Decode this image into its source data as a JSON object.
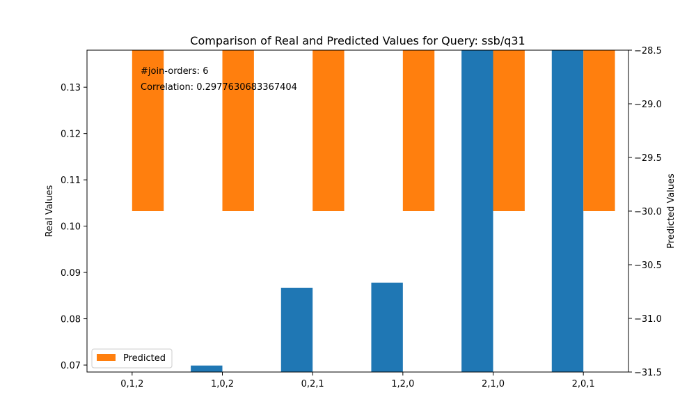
{
  "chart_data": {
    "type": "bar",
    "title": "Comparison of Real and Predicted Values for Query: ssb/q31",
    "categories": [
      "0,1,2",
      "1,0,2",
      "0,2,1",
      "1,2,0",
      "2,1,0",
      "2,0,1"
    ],
    "ylabel_left": "Real Values",
    "ylabel_right": "Predicted Values",
    "ylim_left": [
      0.0685,
      0.138
    ],
    "ylim_right": [
      -31.5,
      -28.5
    ],
    "yticks_left": [
      0.07,
      0.08,
      0.09,
      0.1,
      0.11,
      0.12,
      0.13
    ],
    "yticks_right": [
      -31.5,
      -31.0,
      -30.5,
      -30.0,
      -29.5,
      -29.0,
      -28.5
    ],
    "ytick_labels_left": [
      "0.07",
      "0.08",
      "0.09",
      "0.10",
      "0.11",
      "0.12",
      "0.13"
    ],
    "ytick_labels_right": [
      "−31.5",
      "−31.0",
      "−30.5",
      "−30.0",
      "−29.5",
      "−29.0",
      "−28.5"
    ],
    "series": [
      {
        "key": "real",
        "axis": "left",
        "color": "#1f77b4",
        "values": [
          0.0685,
          0.0699,
          0.0867,
          0.0878,
          0.138,
          0.138
        ]
      },
      {
        "key": "predicted",
        "name": "Predicted",
        "axis": "right",
        "color": "#ff7f0e",
        "values": [
          -30.0,
          -30.0,
          -30.0,
          -30.0,
          -30.0,
          -30.0
        ]
      }
    ],
    "annotations": [
      {
        "text": "#join-orders: 6",
        "color": "#000000"
      },
      {
        "text": "Correlation: 0.2977630683367404",
        "color": "#000000"
      }
    ],
    "legend": {
      "placement": "lower-left",
      "entries": [
        "Predicted"
      ]
    },
    "grid": false
  }
}
